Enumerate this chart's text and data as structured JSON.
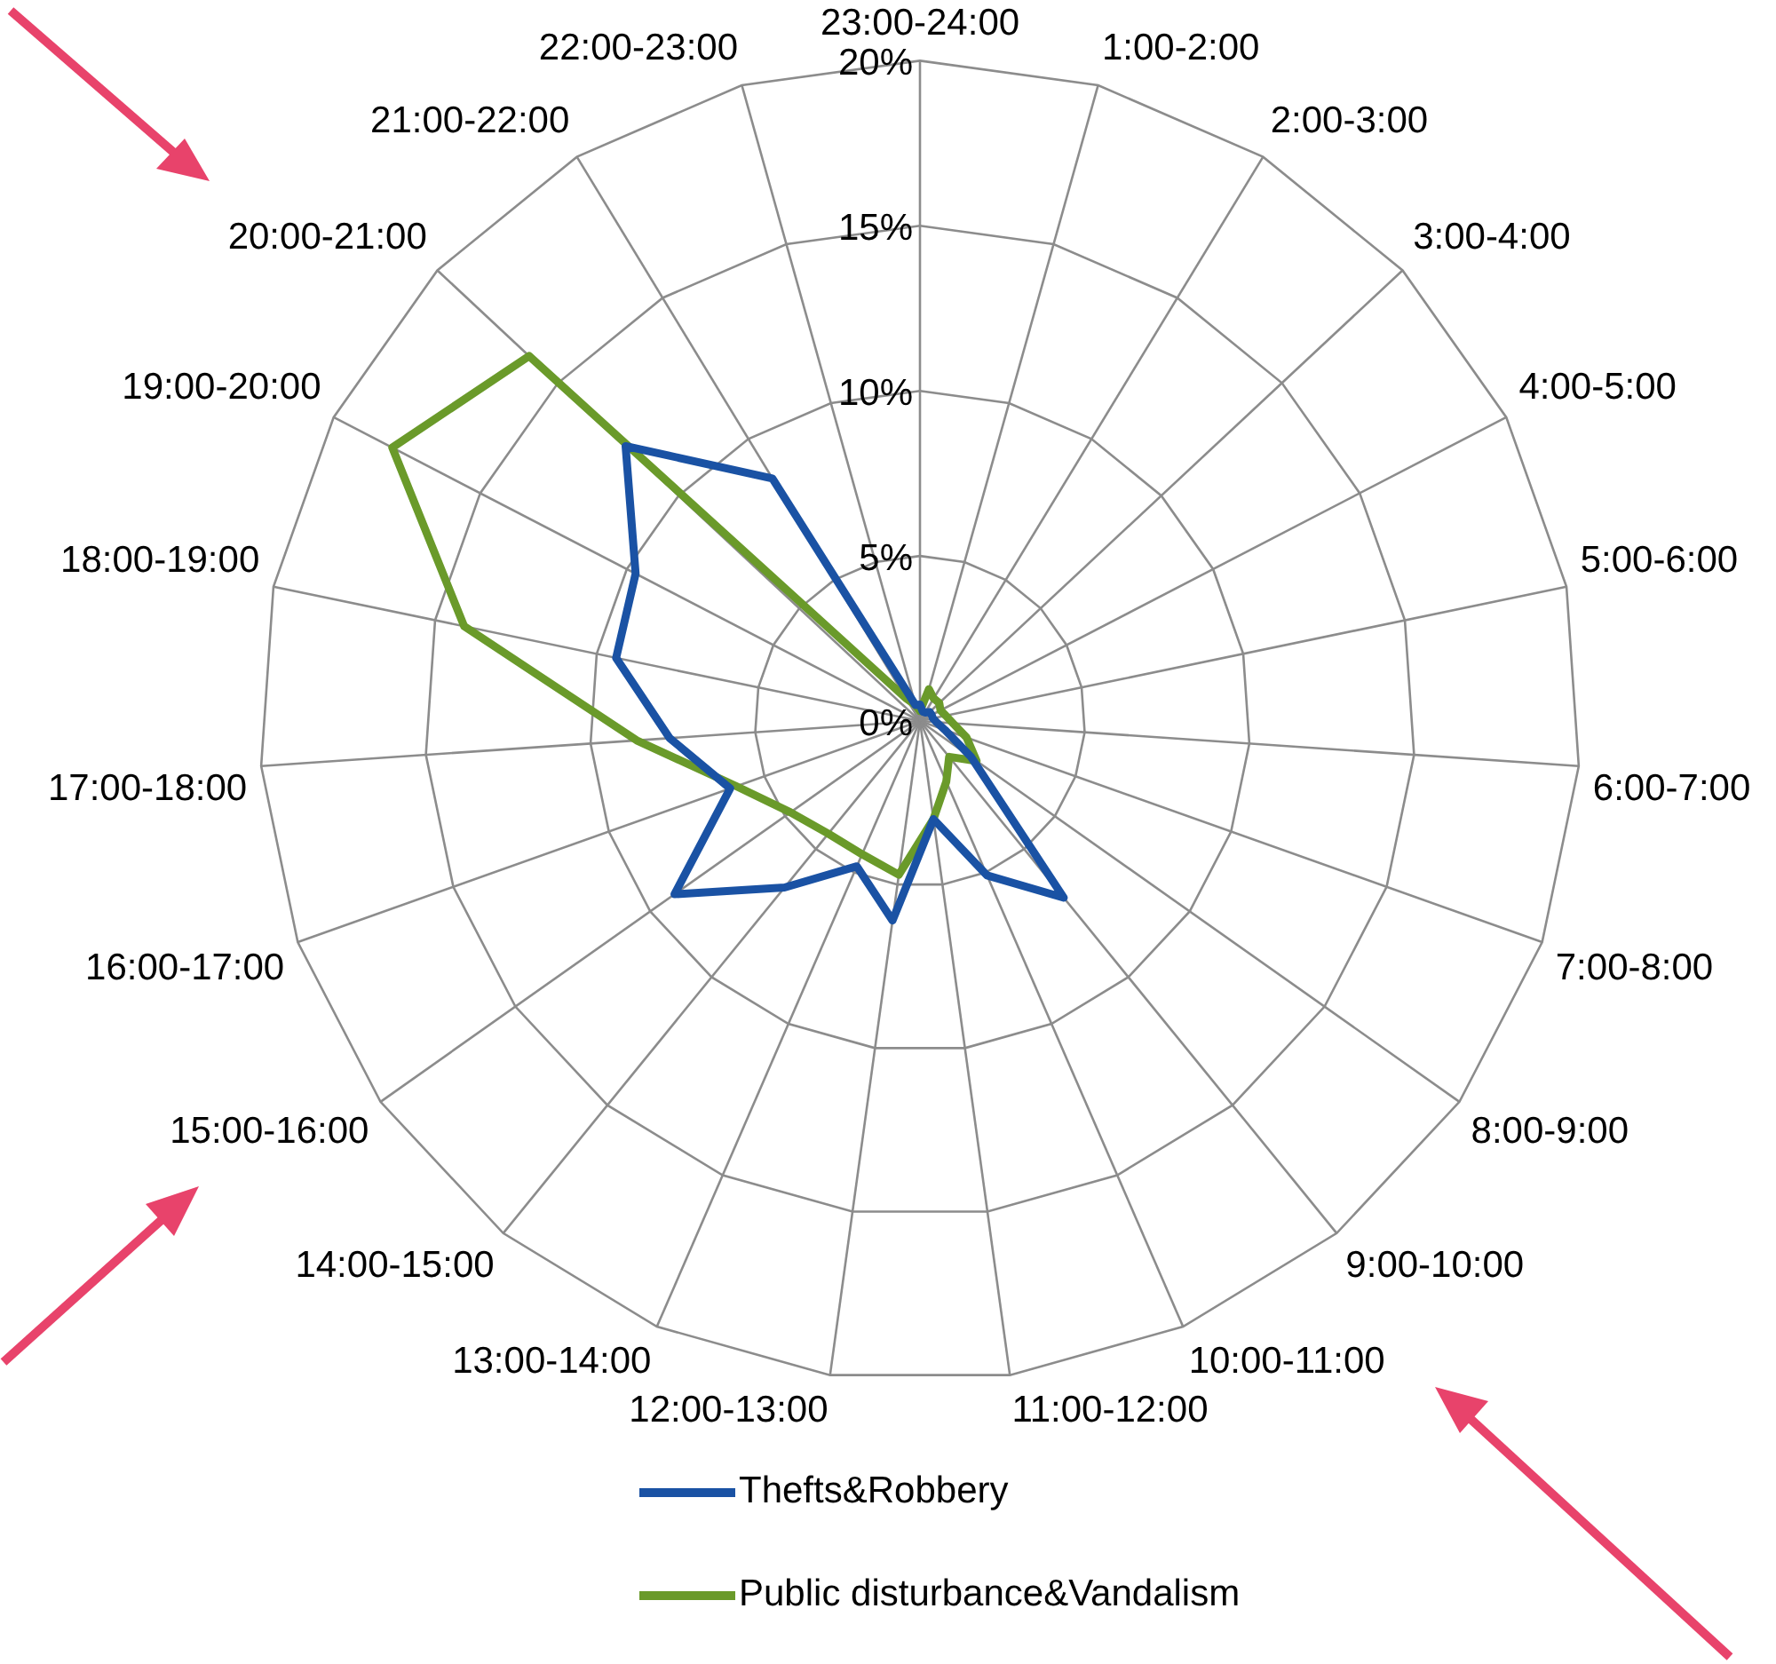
{
  "chart_data": {
    "type": "radar",
    "categories": [
      "23:00-24:00",
      "1:00-2:00",
      "2:00-3:00",
      "3:00-4:00",
      "4:00-5:00",
      "5:00-6:00",
      "6:00-7:00",
      "7:00-8:00",
      "8:00-9:00",
      "9:00-10:00",
      "10:00-11:00",
      "11:00-12:00",
      "12:00-13:00",
      "13:00-14:00",
      "14:00-15:00",
      "15:00-16:00",
      "16:00-17:00",
      "17:00-18:00",
      "18:00-19:00",
      "19:00-20:00",
      "20:00-21:00",
      "21:00-22:00",
      "22:00-23:00"
    ],
    "series": [
      {
        "name": "Thefts&Robbery",
        "color": "#1a52a4",
        "values": [
          0.5,
          0.3,
          0.3,
          0.4,
          0.4,
          0.4,
          0.5,
          0.8,
          1.9,
          6.9,
          5.1,
          3.0,
          6.1,
          4.8,
          6.5,
          9.1,
          6.1,
          7.6,
          9.4,
          9.7,
          12.2,
          8.6,
          0.5
        ]
      },
      {
        "name": "Public disturbance&Vandalism",
        "color": "#6a9a2a",
        "values": [
          0.3,
          1.0,
          0.8,
          0.8,
          0.7,
          0.8,
          1.0,
          1.5,
          2.1,
          1.4,
          2.0,
          3.0,
          4.7,
          4.4,
          4.4,
          4.8,
          5.9,
          8.6,
          14.1,
          18.0,
          16.2,
          0.8,
          0.5
        ]
      }
    ],
    "ylim": [
      0,
      20
    ],
    "yticks": [
      {
        "value": 0,
        "label": "0%"
      },
      {
        "value": 5,
        "label": "5%"
      },
      {
        "value": 10,
        "label": "10%"
      },
      {
        "value": 15,
        "label": "15%"
      },
      {
        "value": 20,
        "label": "20%"
      }
    ],
    "grid": true,
    "legend": "bottom",
    "marker": "none",
    "line_style": "solid"
  }
}
